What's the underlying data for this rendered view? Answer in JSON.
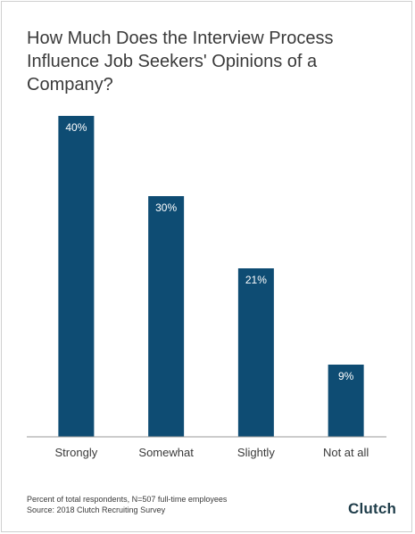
{
  "title_line1": "How Much Does the Interview Process",
  "title_line2": "Influence Job Seekers' Opinions of a Company?",
  "footnote_line1": "Percent of total respondents, N=507 full-time employees",
  "footnote_line2": "Source: 2018 Clutch Recruiting Survey",
  "logo_text": "Clutch",
  "colors": {
    "bar": "#0e4c73",
    "text": "#3a3a3a",
    "logo_accent": "#e8473b"
  },
  "chart_data": {
    "type": "bar",
    "title": "How Much Does the Interview Process Influence Job Seekers' Opinions of a Company?",
    "categories": [
      "Strongly",
      "Somewhat",
      "Slightly",
      "Not at all"
    ],
    "values": [
      40,
      30,
      21,
      9
    ],
    "value_labels": [
      "40%",
      "30%",
      "21%",
      "9%"
    ],
    "ylim": [
      0,
      40
    ],
    "grid": false,
    "legend": "none"
  }
}
